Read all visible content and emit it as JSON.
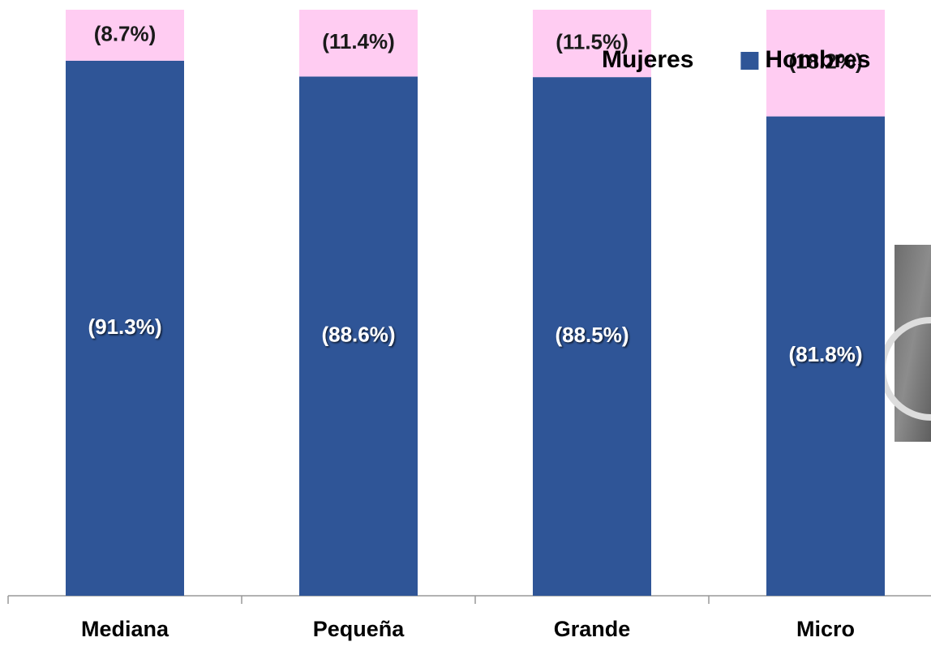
{
  "chart_data": {
    "type": "bar",
    "stacked": true,
    "categories": [
      "Mediana",
      "Pequeña",
      "Grande",
      "Micro"
    ],
    "series": [
      {
        "name": "Hombres",
        "color": "#2f5597",
        "values": [
          91.3,
          88.6,
          88.5,
          81.8
        ],
        "value_labels": [
          "(91.3%)",
          "(88.6%)",
          "(88.5%)",
          "(81.8%)"
        ]
      },
      {
        "name": "Mujeres",
        "color": "#ffccf2",
        "values": [
          8.7,
          11.4,
          11.5,
          18.2
        ],
        "value_labels": [
          "(8.7%)",
          "(11.4%)",
          "(11.5%)",
          "(18.2%)"
        ]
      }
    ],
    "legend": "top-right"
  }
}
